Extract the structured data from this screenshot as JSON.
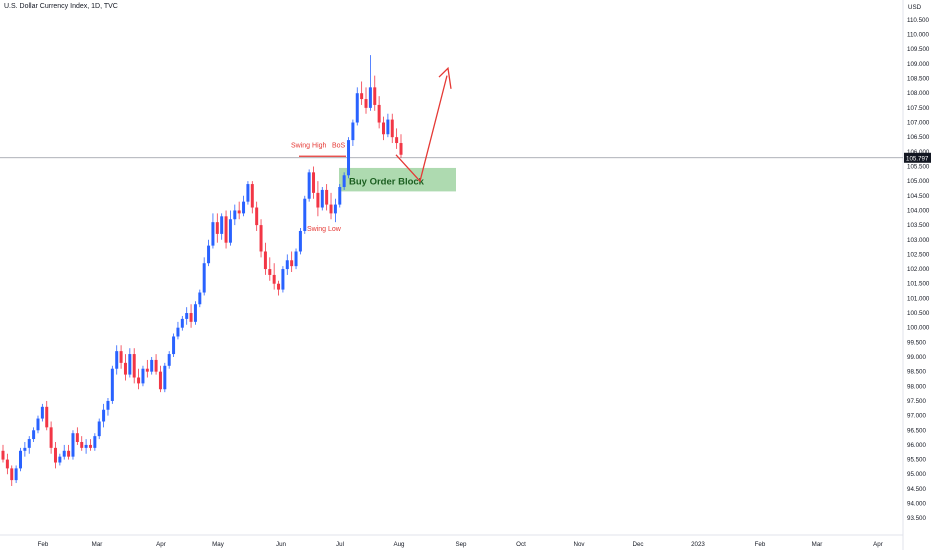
{
  "header": {
    "title": "U.S. Dollar Currency Index, 1D, TVC",
    "currency": "USD"
  },
  "colors": {
    "up": "#2962ff",
    "down": "#f23645",
    "annotation": "#e53935",
    "order_block_fill": "#a5d6a7",
    "price_label_bg": "#131722"
  },
  "chart_data": {
    "type": "candlestick",
    "title": "U.S. Dollar Currency Index, 1D, TVC",
    "ylabel": "USD",
    "ylim": [
      93.2,
      110.6
    ],
    "y_ticks": [
      "93.500",
      "94.000",
      "94.500",
      "95.000",
      "95.500",
      "96.000",
      "96.500",
      "97.000",
      "97.500",
      "98.000",
      "98.500",
      "99.000",
      "99.500",
      "100.000",
      "100.500",
      "101.000",
      "101.500",
      "102.000",
      "102.500",
      "103.000",
      "103.500",
      "104.000",
      "104.500",
      "105.000",
      "105.500",
      "106.000",
      "106.500",
      "107.000",
      "107.500",
      "108.000",
      "108.500",
      "109.000",
      "109.500",
      "110.000",
      "110.500"
    ],
    "x_labels": [
      "Feb",
      "Mar",
      "Apr",
      "May",
      "Jun",
      "Jul",
      "Aug",
      "Sep",
      "Oct",
      "Nov",
      "Dec",
      "2023",
      "Feb",
      "Mar",
      "Apr"
    ],
    "current_price": "105.797",
    "series": [
      {
        "values": [
          [
            95.8,
            96.0,
            95.4,
            95.5
          ],
          [
            95.5,
            95.7,
            95.0,
            95.2
          ],
          [
            95.2,
            95.3,
            94.6,
            94.8
          ],
          [
            94.8,
            95.3,
            94.7,
            95.2
          ],
          [
            95.2,
            95.9,
            95.1,
            95.8
          ],
          [
            95.8,
            96.1,
            95.6,
            95.9
          ],
          [
            95.9,
            96.3,
            95.7,
            96.2
          ],
          [
            96.2,
            96.6,
            96.1,
            96.5
          ],
          [
            96.5,
            97.0,
            96.4,
            96.9
          ],
          [
            96.9,
            97.4,
            96.8,
            97.3
          ],
          [
            97.3,
            97.5,
            96.5,
            96.6
          ],
          [
            96.6,
            96.8,
            95.7,
            95.9
          ],
          [
            95.9,
            96.1,
            95.2,
            95.4
          ],
          [
            95.4,
            95.7,
            95.3,
            95.6
          ],
          [
            95.6,
            96.0,
            95.5,
            95.8
          ],
          [
            95.8,
            96.0,
            95.5,
            95.6
          ],
          [
            95.6,
            96.5,
            95.5,
            96.4
          ],
          [
            96.4,
            96.6,
            96.0,
            96.1
          ],
          [
            96.1,
            96.3,
            95.8,
            95.9
          ],
          [
            95.9,
            96.2,
            95.7,
            96.0
          ],
          [
            96.0,
            96.2,
            95.8,
            95.9
          ],
          [
            95.9,
            96.4,
            95.8,
            96.3
          ],
          [
            96.3,
            96.9,
            96.2,
            96.8
          ],
          [
            96.8,
            97.4,
            96.6,
            97.2
          ],
          [
            97.2,
            97.6,
            97.0,
            97.5
          ],
          [
            97.5,
            98.7,
            97.4,
            98.6
          ],
          [
            98.6,
            99.4,
            98.4,
            99.2
          ],
          [
            99.2,
            99.4,
            98.6,
            98.8
          ],
          [
            98.8,
            99.1,
            98.2,
            98.4
          ],
          [
            98.4,
            99.3,
            98.3,
            99.1
          ],
          [
            99.1,
            99.3,
            98.1,
            98.3
          ],
          [
            98.3,
            98.6,
            97.9,
            98.1
          ],
          [
            98.1,
            98.7,
            98.0,
            98.6
          ],
          [
            98.6,
            98.9,
            98.3,
            98.5
          ],
          [
            98.5,
            99.0,
            98.4,
            98.9
          ],
          [
            98.9,
            99.1,
            98.4,
            98.5
          ],
          [
            98.5,
            98.7,
            97.8,
            97.9
          ],
          [
            97.9,
            98.8,
            97.8,
            98.7
          ],
          [
            98.7,
            99.2,
            98.6,
            99.1
          ],
          [
            99.1,
            99.8,
            99.0,
            99.7
          ],
          [
            99.7,
            100.2,
            99.6,
            100.0
          ],
          [
            100.0,
            100.4,
            99.9,
            100.3
          ],
          [
            100.3,
            100.7,
            100.1,
            100.5
          ],
          [
            100.5,
            100.8,
            100.0,
            100.2
          ],
          [
            100.2,
            100.9,
            100.1,
            100.8
          ],
          [
            100.8,
            101.3,
            100.7,
            101.2
          ],
          [
            101.2,
            102.4,
            101.1,
            102.2
          ],
          [
            102.2,
            103.0,
            102.1,
            102.8
          ],
          [
            102.8,
            103.9,
            102.7,
            103.6
          ],
          [
            103.6,
            103.9,
            102.9,
            103.2
          ],
          [
            103.2,
            103.9,
            103.0,
            103.8
          ],
          [
            103.8,
            104.0,
            102.7,
            102.9
          ],
          [
            102.9,
            104.0,
            102.8,
            103.7
          ],
          [
            103.7,
            104.2,
            103.5,
            104.0
          ],
          [
            104.0,
            104.3,
            103.7,
            103.9
          ],
          [
            103.9,
            104.5,
            103.8,
            104.3
          ],
          [
            104.3,
            105.0,
            104.2,
            104.9
          ],
          [
            104.9,
            105.0,
            103.9,
            104.1
          ],
          [
            104.1,
            104.3,
            103.3,
            103.5
          ],
          [
            103.5,
            103.7,
            102.4,
            102.6
          ],
          [
            102.6,
            102.9,
            101.8,
            102.0
          ],
          [
            102.0,
            102.4,
            101.6,
            101.8
          ],
          [
            101.8,
            102.2,
            101.3,
            101.5
          ],
          [
            101.5,
            101.6,
            101.1,
            101.3
          ],
          [
            101.3,
            102.1,
            101.2,
            102.0
          ],
          [
            102.0,
            102.5,
            101.8,
            102.3
          ],
          [
            102.3,
            102.6,
            101.9,
            102.1
          ],
          [
            102.1,
            102.7,
            102.0,
            102.6
          ],
          [
            102.6,
            103.4,
            102.5,
            103.3
          ],
          [
            103.3,
            104.5,
            103.2,
            104.4
          ],
          [
            104.4,
            105.4,
            104.3,
            105.3
          ],
          [
            105.3,
            105.5,
            104.4,
            104.6
          ],
          [
            104.6,
            105.0,
            103.8,
            104.1
          ],
          [
            104.1,
            104.8,
            104.0,
            104.7
          ],
          [
            104.7,
            104.9,
            104.0,
            104.2
          ],
          [
            104.2,
            104.6,
            103.7,
            103.9
          ],
          [
            103.9,
            104.4,
            103.6,
            104.2
          ],
          [
            104.2,
            104.9,
            104.1,
            104.8
          ],
          [
            104.8,
            105.3,
            104.7,
            105.2
          ],
          [
            105.2,
            106.5,
            105.1,
            106.4
          ],
          [
            106.4,
            107.1,
            106.2,
            107.0
          ],
          [
            107.0,
            108.2,
            106.9,
            108.0
          ],
          [
            108.0,
            108.4,
            107.6,
            107.8
          ],
          [
            107.8,
            108.2,
            107.3,
            107.5
          ],
          [
            107.5,
            109.3,
            107.4,
            108.2
          ],
          [
            108.2,
            108.6,
            107.4,
            107.6
          ],
          [
            107.6,
            107.9,
            106.8,
            107.0
          ],
          [
            107.0,
            107.2,
            106.4,
            106.6
          ],
          [
            106.6,
            107.3,
            106.5,
            107.1
          ],
          [
            107.1,
            107.3,
            106.3,
            106.5
          ],
          [
            106.5,
            106.8,
            106.1,
            106.3
          ],
          [
            106.3,
            106.6,
            105.8,
            105.9
          ]
        ]
      }
    ],
    "annotations": {
      "swing_high": "Swing High",
      "bos": "BoS",
      "swing_low": "Swing Low",
      "order_block": "Buy Order Block"
    }
  }
}
